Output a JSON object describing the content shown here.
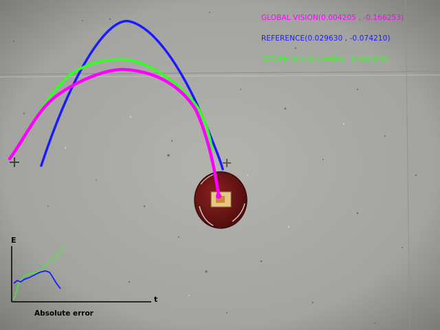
{
  "legend": {
    "global_vision": "GLOBAL VISION(0.004205 , -0.166253)",
    "reference": "REFERENCE(0.029630 , -0.074210)",
    "odometer": "ODOMETER(-0.136456 , 0.322378)"
  },
  "colors": {
    "global_vision": "#ff00ff",
    "reference": "#1a1aff",
    "odometer": "#33ff22",
    "floor": "#a9a9a5",
    "robot_body": "#6e1616",
    "robot_marker": "#e0b060"
  },
  "error_plot": {
    "y_axis_label": "E",
    "x_axis_label": "t",
    "caption": "Absolute error"
  }
}
